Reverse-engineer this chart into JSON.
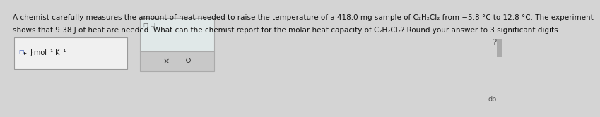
{
  "background_color": "#d4d4d4",
  "text_color": "#111111",
  "line1": "A chemist carefully measures the amount of heat needed to raise the temperature of a 418.0 mg sample of C₂H₂Cl₂ from −5.8 °C to 12.8 °C. The experiment",
  "line2": "shows that 9.38 J of heat are needed. What can the chemist report for the molar heat capacity of C₂H₂Cl₂? Round your answer to 3 significant digits.",
  "units_label": "J·mol⁻¹·K⁻¹",
  "x_symbol": "×",
  "refresh_symbol": "↺",
  "right_label": "?",
  "bottom_right_label": "db",
  "font_size_main": 7.5,
  "font_size_units": 7.0,
  "box1_color": "#f0f0f0",
  "box2_color": "#e8e8e8",
  "box2_bottom_color": "#c8c8c8"
}
